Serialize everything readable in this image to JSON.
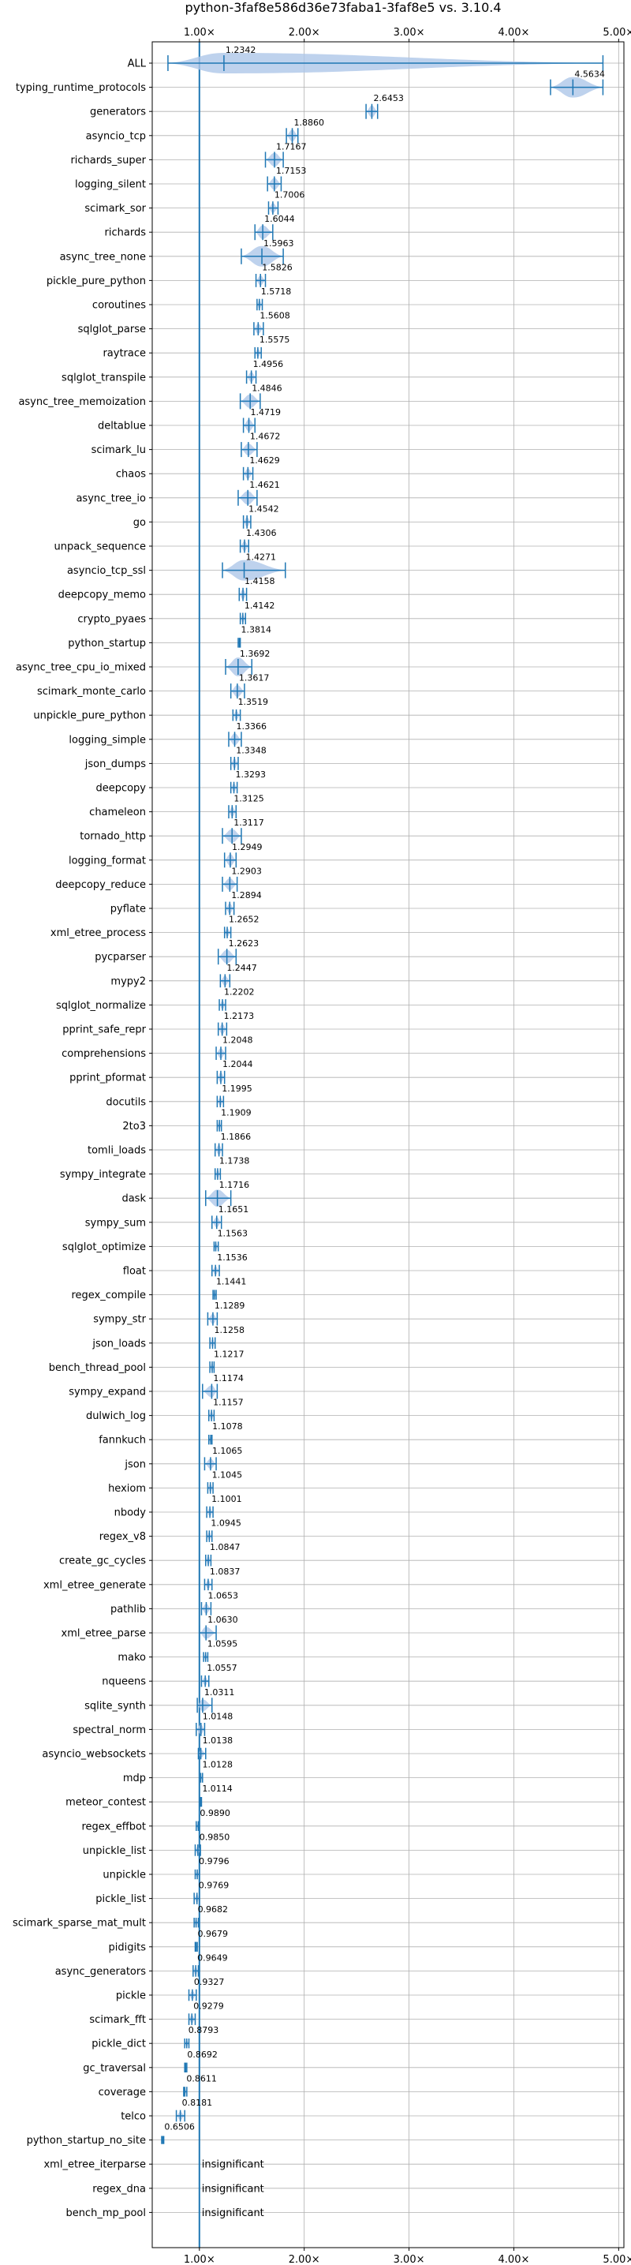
{
  "chart_data": {
    "type": "violin",
    "title": "python-3faf8e586d36e73faba1-3faf8e5 vs. 3.10.4",
    "x_scale": "linear",
    "xlim": [
      0.55,
      5.05
    ],
    "x_ticks": [
      1,
      2,
      3,
      4,
      5
    ],
    "x_tick_labels": [
      "1.00×",
      "2.00×",
      "3.00×",
      "4.00×",
      "5.00×"
    ],
    "reference_line": 1.0,
    "grid": true,
    "colors": {
      "violin": "#1f77b4",
      "violin_fill": "#aec7e8",
      "grid": "#b0b0b0"
    },
    "benchmarks": [
      {
        "name": "ALL",
        "value": 1.2342,
        "label": "1.2342",
        "min": 0.7,
        "max": 4.85,
        "spread": 0.16
      },
      {
        "name": "typing_runtime_protocols",
        "value": 4.5634,
        "label": "4.5634",
        "min": 4.35,
        "max": 4.85,
        "spread": 0.22
      },
      {
        "name": "generators",
        "value": 2.6453,
        "label": "2.6453",
        "min": 2.59,
        "max": 2.7,
        "spread": 0.05
      },
      {
        "name": "asyncio_tcp",
        "value": 1.886,
        "label": "1.8860",
        "min": 1.83,
        "max": 1.94,
        "spread": 0.05
      },
      {
        "name": "richards_super",
        "value": 1.7167,
        "label": "1.7167",
        "min": 1.63,
        "max": 1.8,
        "spread": 0.06
      },
      {
        "name": "logging_silent",
        "value": 1.7153,
        "label": "1.7153",
        "min": 1.65,
        "max": 1.78,
        "spread": 0.05
      },
      {
        "name": "scimark_sor",
        "value": 1.7006,
        "label": "1.7006",
        "min": 1.66,
        "max": 1.75,
        "spread": 0.04
      },
      {
        "name": "richards",
        "value": 1.6044,
        "label": "1.6044",
        "min": 1.53,
        "max": 1.7,
        "spread": 0.06
      },
      {
        "name": "async_tree_none",
        "value": 1.5963,
        "label": "1.5963",
        "min": 1.4,
        "max": 1.8,
        "spread": 0.1
      },
      {
        "name": "pickle_pure_python",
        "value": 1.5826,
        "label": "1.5826",
        "min": 1.54,
        "max": 1.63,
        "spread": 0.04
      },
      {
        "name": "coroutines",
        "value": 1.5718,
        "label": "1.5718",
        "min": 1.55,
        "max": 1.6,
        "spread": 0.03
      },
      {
        "name": "sqlglot_parse",
        "value": 1.5608,
        "label": "1.5608",
        "min": 1.52,
        "max": 1.61,
        "spread": 0.04
      },
      {
        "name": "raytrace",
        "value": 1.5575,
        "label": "1.5575",
        "min": 1.53,
        "max": 1.59,
        "spread": 0.03
      },
      {
        "name": "sqlglot_transpile",
        "value": 1.4956,
        "label": "1.4956",
        "min": 1.45,
        "max": 1.54,
        "spread": 0.04
      },
      {
        "name": "async_tree_memoization",
        "value": 1.4846,
        "label": "1.4846",
        "min": 1.39,
        "max": 1.58,
        "spread": 0.06
      },
      {
        "name": "deltablue",
        "value": 1.4719,
        "label": "1.4719",
        "min": 1.42,
        "max": 1.53,
        "spread": 0.05
      },
      {
        "name": "scimark_lu",
        "value": 1.4672,
        "label": "1.4672",
        "min": 1.4,
        "max": 1.55,
        "spread": 0.05
      },
      {
        "name": "chaos",
        "value": 1.4629,
        "label": "1.4629",
        "min": 1.42,
        "max": 1.51,
        "spread": 0.04
      },
      {
        "name": "async_tree_io",
        "value": 1.4621,
        "label": "1.4621",
        "min": 1.37,
        "max": 1.55,
        "spread": 0.06
      },
      {
        "name": "go",
        "value": 1.4542,
        "label": "1.4542",
        "min": 1.42,
        "max": 1.49,
        "spread": 0.04
      },
      {
        "name": "unpack_sequence",
        "value": 1.4306,
        "label": "1.4306",
        "min": 1.39,
        "max": 1.47,
        "spread": 0.04
      },
      {
        "name": "asyncio_tcp_ssl",
        "value": 1.4271,
        "label": "1.4271",
        "min": 1.22,
        "max": 1.82,
        "spread": 0.11
      },
      {
        "name": "deepcopy_memo",
        "value": 1.4158,
        "label": "1.4158",
        "min": 1.38,
        "max": 1.45,
        "spread": 0.04
      },
      {
        "name": "crypto_pyaes",
        "value": 1.4142,
        "label": "1.4142",
        "min": 1.39,
        "max": 1.44,
        "spread": 0.03
      },
      {
        "name": "python_startup",
        "value": 1.3814,
        "label": "1.3814",
        "min": 1.37,
        "max": 1.39,
        "spread": 0.02
      },
      {
        "name": "async_tree_cpu_io_mixed",
        "value": 1.3692,
        "label": "1.3692",
        "min": 1.25,
        "max": 1.5,
        "spread": 0.09
      },
      {
        "name": "scimark_monte_carlo",
        "value": 1.3617,
        "label": "1.3617",
        "min": 1.3,
        "max": 1.43,
        "spread": 0.05
      },
      {
        "name": "unpickle_pure_python",
        "value": 1.3519,
        "label": "1.3519",
        "min": 1.32,
        "max": 1.39,
        "spread": 0.03
      },
      {
        "name": "logging_simple",
        "value": 1.3366,
        "label": "1.3366",
        "min": 1.28,
        "max": 1.4,
        "spread": 0.05
      },
      {
        "name": "json_dumps",
        "value": 1.3348,
        "label": "1.3348",
        "min": 1.3,
        "max": 1.37,
        "spread": 0.04
      },
      {
        "name": "deepcopy",
        "value": 1.3293,
        "label": "1.3293",
        "min": 1.3,
        "max": 1.36,
        "spread": 0.03
      },
      {
        "name": "chameleon",
        "value": 1.3125,
        "label": "1.3125",
        "min": 1.28,
        "max": 1.35,
        "spread": 0.04
      },
      {
        "name": "tornado_http",
        "value": 1.3117,
        "label": "1.3117",
        "min": 1.22,
        "max": 1.4,
        "spread": 0.06
      },
      {
        "name": "logging_format",
        "value": 1.2949,
        "label": "1.2949",
        "min": 1.24,
        "max": 1.35,
        "spread": 0.05
      },
      {
        "name": "deepcopy_reduce",
        "value": 1.2903,
        "label": "1.2903",
        "min": 1.22,
        "max": 1.36,
        "spread": 0.05
      },
      {
        "name": "pyflate",
        "value": 1.2894,
        "label": "1.2894",
        "min": 1.25,
        "max": 1.33,
        "spread": 0.04
      },
      {
        "name": "xml_etree_process",
        "value": 1.2652,
        "label": "1.2652",
        "min": 1.24,
        "max": 1.3,
        "spread": 0.03
      },
      {
        "name": "pycparser",
        "value": 1.2623,
        "label": "1.2623",
        "min": 1.18,
        "max": 1.35,
        "spread": 0.06
      },
      {
        "name": "mypy2",
        "value": 1.2447,
        "label": "1.2447",
        "min": 1.2,
        "max": 1.29,
        "spread": 0.04
      },
      {
        "name": "sqlglot_normalize",
        "value": 1.2202,
        "label": "1.2202",
        "min": 1.19,
        "max": 1.25,
        "spread": 0.03
      },
      {
        "name": "pprint_safe_repr",
        "value": 1.2173,
        "label": "1.2173",
        "min": 1.18,
        "max": 1.26,
        "spread": 0.04
      },
      {
        "name": "comprehensions",
        "value": 1.2048,
        "label": "1.2048",
        "min": 1.16,
        "max": 1.25,
        "spread": 0.04
      },
      {
        "name": "pprint_pformat",
        "value": 1.2044,
        "label": "1.2044",
        "min": 1.17,
        "max": 1.24,
        "spread": 0.04
      },
      {
        "name": "docutils",
        "value": 1.1995,
        "label": "1.1995",
        "min": 1.17,
        "max": 1.23,
        "spread": 0.03
      },
      {
        "name": "2to3",
        "value": 1.1909,
        "label": "1.1909",
        "min": 1.17,
        "max": 1.21,
        "spread": 0.03
      },
      {
        "name": "tomli_loads",
        "value": 1.1866,
        "label": "1.1866",
        "min": 1.15,
        "max": 1.22,
        "spread": 0.04
      },
      {
        "name": "sympy_integrate",
        "value": 1.1738,
        "label": "1.1738",
        "min": 1.15,
        "max": 1.2,
        "spread": 0.03
      },
      {
        "name": "dask",
        "value": 1.1716,
        "label": "1.1716",
        "min": 1.06,
        "max": 1.3,
        "spread": 0.08
      },
      {
        "name": "sympy_sum",
        "value": 1.1651,
        "label": "1.1651",
        "min": 1.12,
        "max": 1.21,
        "spread": 0.04
      },
      {
        "name": "sqlglot_optimize",
        "value": 1.1563,
        "label": "1.1563",
        "min": 1.14,
        "max": 1.18,
        "spread": 0.02
      },
      {
        "name": "float",
        "value": 1.1536,
        "label": "1.1536",
        "min": 1.12,
        "max": 1.19,
        "spread": 0.03
      },
      {
        "name": "regex_compile",
        "value": 1.1441,
        "label": "1.1441",
        "min": 1.13,
        "max": 1.16,
        "spread": 0.02
      },
      {
        "name": "sympy_str",
        "value": 1.1289,
        "label": "1.1289",
        "min": 1.08,
        "max": 1.17,
        "spread": 0.04
      },
      {
        "name": "json_loads",
        "value": 1.1258,
        "label": "1.1258",
        "min": 1.1,
        "max": 1.15,
        "spread": 0.03
      },
      {
        "name": "bench_thread_pool",
        "value": 1.1217,
        "label": "1.1217",
        "min": 1.1,
        "max": 1.14,
        "spread": 0.03
      },
      {
        "name": "sympy_expand",
        "value": 1.1174,
        "label": "1.1174",
        "min": 1.03,
        "max": 1.17,
        "spread": 0.05
      },
      {
        "name": "dulwich_log",
        "value": 1.1157,
        "label": "1.1157",
        "min": 1.09,
        "max": 1.14,
        "spread": 0.03
      },
      {
        "name": "fannkuch",
        "value": 1.1078,
        "label": "1.1078",
        "min": 1.09,
        "max": 1.12,
        "spread": 0.02
      },
      {
        "name": "json",
        "value": 1.1065,
        "label": "1.1065",
        "min": 1.05,
        "max": 1.16,
        "spread": 0.04
      },
      {
        "name": "hexiom",
        "value": 1.1045,
        "label": "1.1045",
        "min": 1.08,
        "max": 1.13,
        "spread": 0.03
      },
      {
        "name": "nbody",
        "value": 1.1001,
        "label": "1.1001",
        "min": 1.07,
        "max": 1.13,
        "spread": 0.03
      },
      {
        "name": "regex_v8",
        "value": 1.0945,
        "label": "1.0945",
        "min": 1.07,
        "max": 1.12,
        "spread": 0.03
      },
      {
        "name": "create_gc_cycles",
        "value": 1.0847,
        "label": "1.0847",
        "min": 1.06,
        "max": 1.11,
        "spread": 0.03
      },
      {
        "name": "xml_etree_generate",
        "value": 1.0837,
        "label": "1.0837",
        "min": 1.05,
        "max": 1.12,
        "spread": 0.03
      },
      {
        "name": "pathlib",
        "value": 1.0653,
        "label": "1.0653",
        "min": 1.02,
        "max": 1.11,
        "spread": 0.04
      },
      {
        "name": "xml_etree_parse",
        "value": 1.063,
        "label": "1.0630",
        "min": 1.0,
        "max": 1.16,
        "spread": 0.05
      },
      {
        "name": "mako",
        "value": 1.0595,
        "label": "1.0595",
        "min": 1.04,
        "max": 1.08,
        "spread": 0.02
      },
      {
        "name": "nqueens",
        "value": 1.0557,
        "label": "1.0557",
        "min": 1.02,
        "max": 1.09,
        "spread": 0.03
      },
      {
        "name": "sqlite_synth",
        "value": 1.0311,
        "label": "1.0311",
        "min": 0.98,
        "max": 1.12,
        "spread": 0.05
      },
      {
        "name": "spectral_norm",
        "value": 1.0148,
        "label": "1.0148",
        "min": 0.97,
        "max": 1.05,
        "spread": 0.04
      },
      {
        "name": "asyncio_websockets",
        "value": 1.0138,
        "label": "1.0138",
        "min": 0.99,
        "max": 1.06,
        "spread": 0.03
      },
      {
        "name": "mdp",
        "value": 1.0128,
        "label": "1.0128",
        "min": 1.0,
        "max": 1.03,
        "spread": 0.02
      },
      {
        "name": "meteor_contest",
        "value": 1.0114,
        "label": "1.0114",
        "min": 1.0,
        "max": 1.02,
        "spread": 0.02
      },
      {
        "name": "regex_effbot",
        "value": 0.989,
        "label": "0.9890",
        "min": 0.97,
        "max": 1.0,
        "spread": 0.02
      },
      {
        "name": "unpickle_list",
        "value": 0.985,
        "label": "0.9850",
        "min": 0.96,
        "max": 1.01,
        "spread": 0.03
      },
      {
        "name": "unpickle",
        "value": 0.9796,
        "label": "0.9796",
        "min": 0.96,
        "max": 1.0,
        "spread": 0.02
      },
      {
        "name": "pickle_list",
        "value": 0.9769,
        "label": "0.9769",
        "min": 0.95,
        "max": 1.0,
        "spread": 0.03
      },
      {
        "name": "scimark_sparse_mat_mult",
        "value": 0.9682,
        "label": "0.9682",
        "min": 0.95,
        "max": 0.99,
        "spread": 0.02
      },
      {
        "name": "pidigits",
        "value": 0.9679,
        "label": "0.9679",
        "min": 0.96,
        "max": 0.98,
        "spread": 0.02
      },
      {
        "name": "async_generators",
        "value": 0.9649,
        "label": "0.9649",
        "min": 0.94,
        "max": 0.99,
        "spread": 0.03
      },
      {
        "name": "pickle",
        "value": 0.9327,
        "label": "0.9327",
        "min": 0.9,
        "max": 0.97,
        "spread": 0.03
      },
      {
        "name": "scimark_fft",
        "value": 0.9279,
        "label": "0.9279",
        "min": 0.9,
        "max": 0.96,
        "spread": 0.03
      },
      {
        "name": "pickle_dict",
        "value": 0.8793,
        "label": "0.8793",
        "min": 0.86,
        "max": 0.9,
        "spread": 0.02
      },
      {
        "name": "gc_traversal",
        "value": 0.8692,
        "label": "0.8692",
        "min": 0.86,
        "max": 0.88,
        "spread": 0.02
      },
      {
        "name": "coverage",
        "value": 0.8611,
        "label": "0.8611",
        "min": 0.85,
        "max": 0.88,
        "spread": 0.02
      },
      {
        "name": "telco",
        "value": 0.8181,
        "label": "0.8181",
        "min": 0.78,
        "max": 0.86,
        "spread": 0.03
      },
      {
        "name": "python_startup_no_site",
        "value": 0.6506,
        "label": "0.6506",
        "min": 0.64,
        "max": 0.66,
        "spread": 0.01
      },
      {
        "name": "xml_etree_iterparse",
        "value": null,
        "label": "insignificant"
      },
      {
        "name": "regex_dna",
        "value": null,
        "label": "insignificant"
      },
      {
        "name": "bench_mp_pool",
        "value": null,
        "label": "insignificant"
      }
    ]
  }
}
